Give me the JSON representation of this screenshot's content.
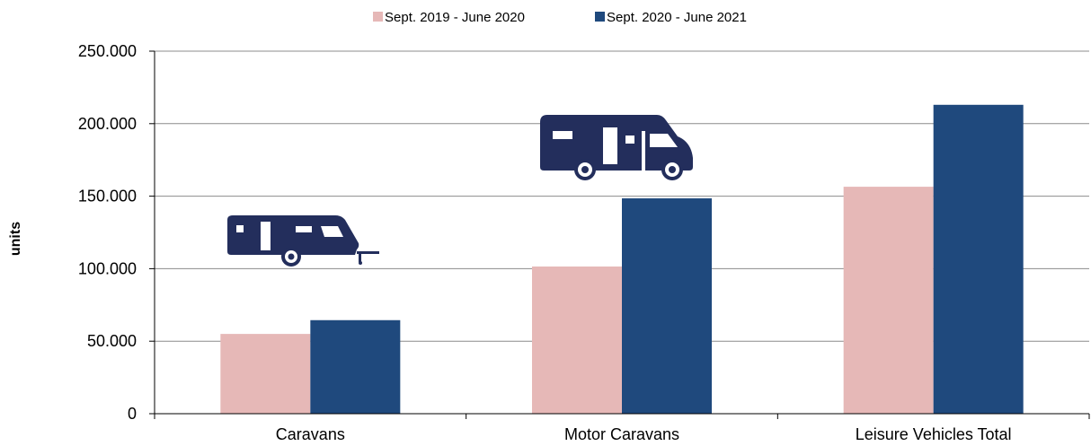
{
  "chart_data": {
    "type": "bar",
    "ylabel": "units",
    "ylim": [
      0,
      250000
    ],
    "y_ticks": [
      {
        "value": 0,
        "label": "0"
      },
      {
        "value": 50000,
        "label": "50.000"
      },
      {
        "value": 100000,
        "label": "100.000"
      },
      {
        "value": 150000,
        "label": "150.000"
      },
      {
        "value": 200000,
        "label": "200.000"
      },
      {
        "value": 250000,
        "label": "250.000"
      }
    ],
    "grid": true,
    "legend": "top-center",
    "categories": [
      "Caravans",
      "Motor Caravans",
      "Leisure Vehicles Total"
    ],
    "series": [
      {
        "name": "Sept. 2019 - June 2020",
        "color": "#e6b8b7",
        "values": [
          55000,
          101500,
          156500
        ]
      },
      {
        "name": "Sept. 2020 - June 2021",
        "color": "#1f497d",
        "values": [
          64500,
          148500,
          213000
        ]
      }
    ],
    "icons": [
      "caravan-icon",
      "motor-caravan-icon"
    ],
    "icon_color": "#232e5c"
  }
}
